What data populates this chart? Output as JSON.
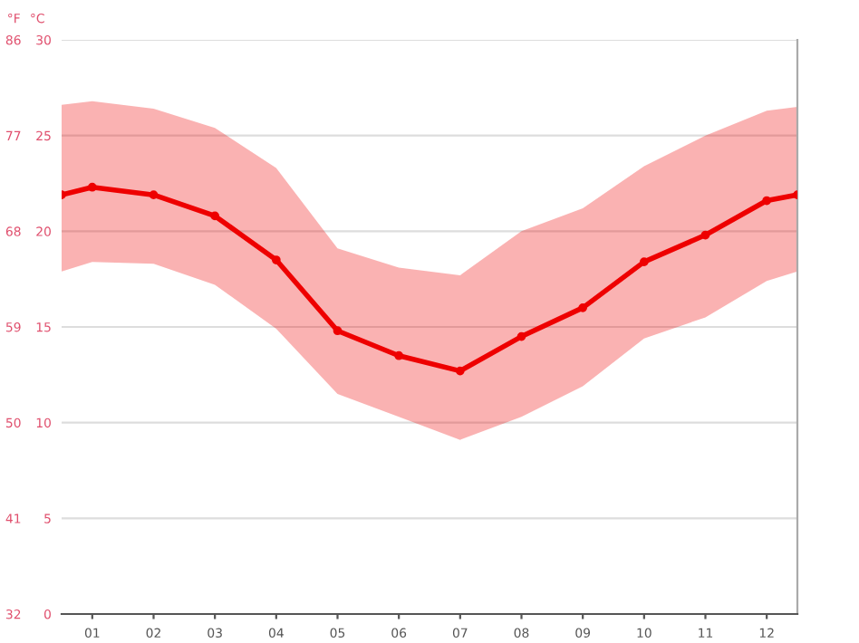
{
  "chart_data": {
    "type": "line",
    "ylabel": "°C",
    "y2label": "°F",
    "x": [
      0.5,
      1,
      2,
      3,
      4,
      5,
      6,
      7,
      8,
      9,
      10,
      11,
      12,
      12.5
    ],
    "xlim": [
      0.5,
      12.5
    ],
    "xticks": [
      {
        "value": 1,
        "label": "01"
      },
      {
        "value": 2,
        "label": "02"
      },
      {
        "value": 3,
        "label": "03"
      },
      {
        "value": 4,
        "label": "04"
      },
      {
        "value": 5,
        "label": "05"
      },
      {
        "value": 6,
        "label": "06"
      },
      {
        "value": 7,
        "label": "07"
      },
      {
        "value": 8,
        "label": "08"
      },
      {
        "value": 9,
        "label": "09"
      },
      {
        "value": 10,
        "label": "10"
      },
      {
        "value": 11,
        "label": "11"
      },
      {
        "value": 12,
        "label": "12"
      }
    ],
    "ylim": [
      0,
      30
    ],
    "yticks": [
      0,
      5,
      10,
      15,
      20,
      25,
      30
    ],
    "y2lim": [
      32,
      86
    ],
    "y2ticks": [
      32,
      41,
      50,
      59,
      68,
      77,
      86
    ],
    "grid": "y",
    "marker": "circle",
    "line_style": "solid",
    "series": [
      {
        "color": "#ee0000",
        "values": [
          21.9,
          22.3,
          21.9,
          20.8,
          18.5,
          14.8,
          13.5,
          12.7,
          14.5,
          16.0,
          18.4,
          19.8,
          21.6,
          21.9
        ],
        "lower": [
          17.9,
          18.4,
          18.3,
          17.2,
          14.9,
          11.5,
          10.3,
          9.1,
          10.3,
          11.9,
          14.4,
          15.5,
          17.4,
          17.9
        ],
        "upper": [
          26.6,
          26.8,
          26.4,
          25.4,
          23.3,
          19.1,
          18.1,
          17.7,
          20.0,
          21.2,
          23.4,
          25.0,
          26.3,
          26.5
        ]
      }
    ]
  }
}
